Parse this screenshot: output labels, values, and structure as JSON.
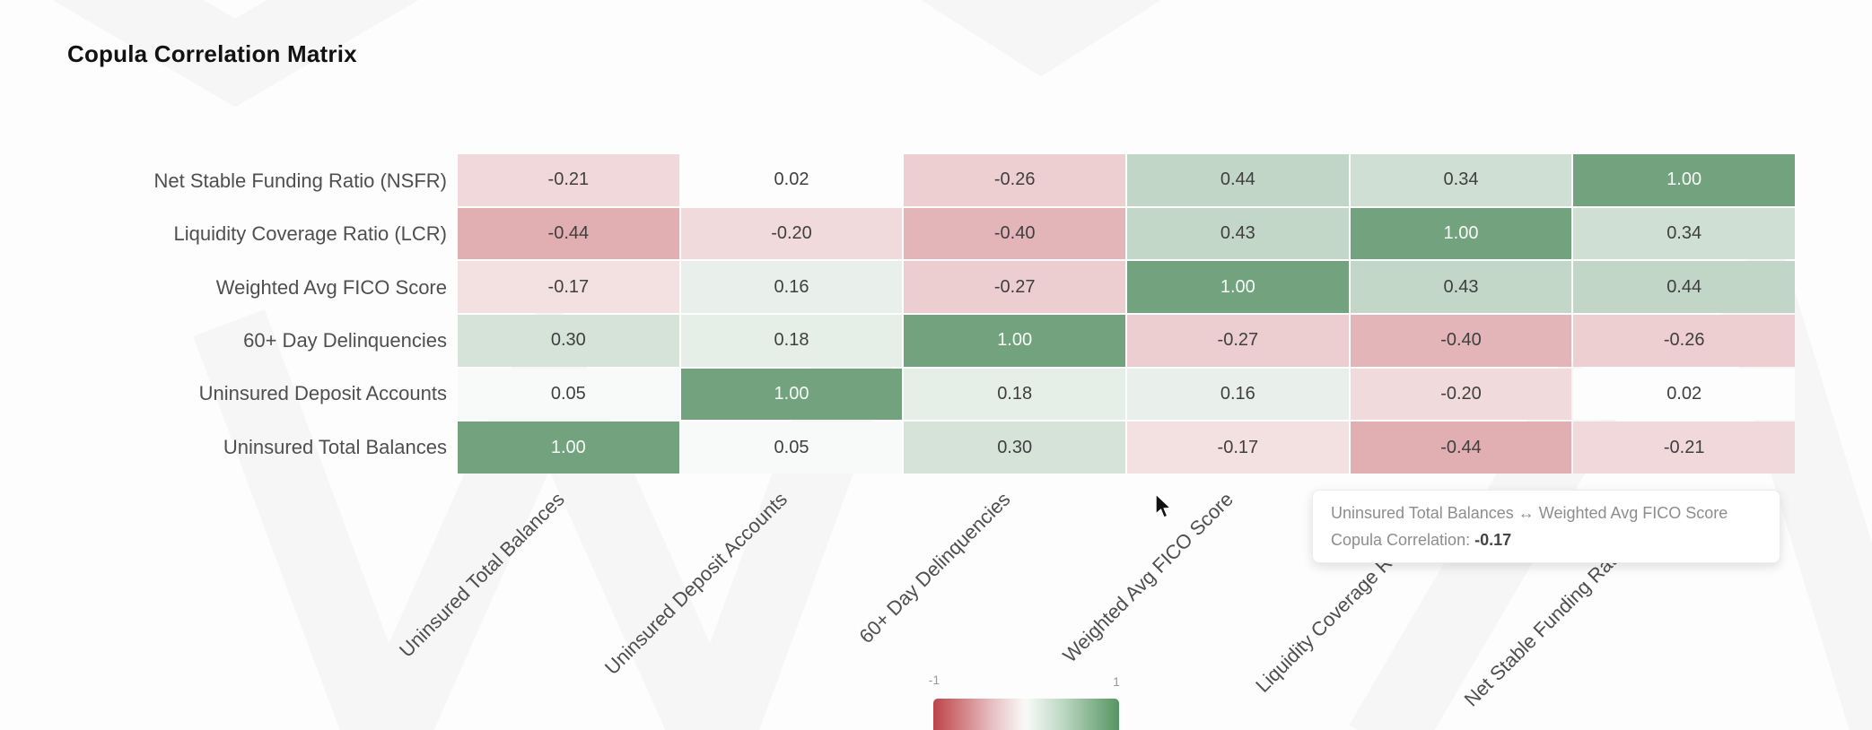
{
  "chart_data": {
    "type": "heatmap",
    "title": "Copula Correlation Matrix",
    "x_labels": [
      "Uninsured Total Balances",
      "Uninsured Deposit Accounts",
      "60+ Day Delinquencies",
      "Weighted Avg FICO Score",
      "Liquidity Coverage Ratio (LCR)",
      "Net Stable Funding Ratio (NSFR)"
    ],
    "y_labels": [
      "Net Stable Funding Ratio (NSFR)",
      "Liquidity Coverage Ratio (LCR)",
      "Weighted Avg FICO Score",
      "60+ Day Delinquencies",
      "Uninsured Deposit Accounts",
      "Uninsured Total Balances"
    ],
    "matrix": [
      [
        -0.21,
        0.02,
        -0.26,
        0.44,
        0.34,
        1.0
      ],
      [
        -0.44,
        -0.2,
        -0.4,
        0.43,
        1.0,
        0.34
      ],
      [
        -0.17,
        0.16,
        -0.27,
        1.0,
        0.43,
        0.44
      ],
      [
        0.3,
        0.18,
        1.0,
        -0.27,
        -0.4,
        -0.26
      ],
      [
        0.05,
        1.0,
        0.18,
        0.16,
        -0.2,
        0.02
      ],
      [
        1.0,
        0.05,
        0.3,
        -0.17,
        -0.44,
        -0.21
      ]
    ],
    "value_decimals": 2,
    "colorscale": {
      "min": -1,
      "max": 1,
      "negative_color": "#ba4650",
      "zero_color": "#ffffff",
      "positive_color": "#73a27f"
    },
    "legend": {
      "min_label": "-1",
      "max_label": "1",
      "position": "bottom"
    }
  },
  "tooltip": {
    "pair": "Uninsured Total Balances ↔ Weighted Avg FICO Score",
    "metric_label": "Copula Correlation: ",
    "value": "-0.17"
  }
}
